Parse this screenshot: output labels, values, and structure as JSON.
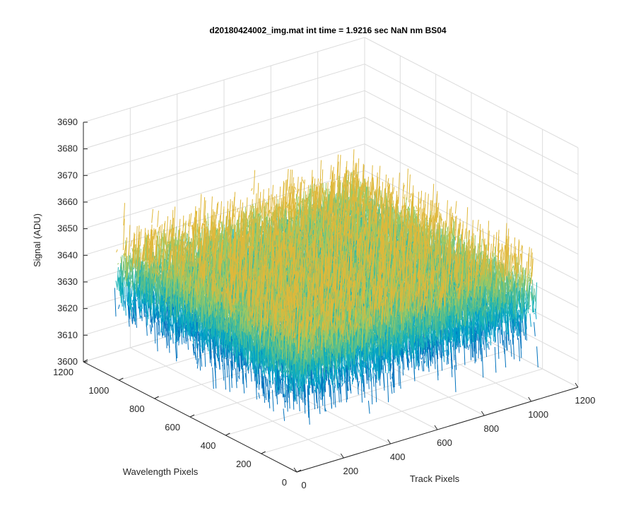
{
  "chart_data": {
    "type": "surface3d",
    "title": "d20180424002_img.mat int time = 1.9216 sec  NaN nm BS04",
    "xlabel": "Track Pixels",
    "ylabel": "Wavelength Pixels",
    "zlabel": "Signal (ADU)",
    "xlim": [
      0,
      1200
    ],
    "ylim": [
      0,
      1200
    ],
    "zlim": [
      3600,
      3690
    ],
    "x_ticks": [
      "0",
      "200",
      "400",
      "600",
      "800",
      "1000",
      "1200"
    ],
    "y_ticks": [
      "0",
      "200",
      "400",
      "600",
      "800",
      "1000",
      "1200"
    ],
    "z_ticks": [
      "3600",
      "3610",
      "3620",
      "3630",
      "3640",
      "3650",
      "3660",
      "3670",
      "3680",
      "3690"
    ],
    "data_extent": {
      "x": [
        0,
        1024
      ],
      "y": [
        0,
        1024
      ]
    },
    "signal_mean": 3638,
    "signal_noise_range": [
      3612,
      3685
    ],
    "grid": true,
    "colormap": [
      "#0072bd",
      "#00a0c8",
      "#1ab3b5",
      "#5cbf8a",
      "#9ec862",
      "#e0b83a"
    ]
  }
}
